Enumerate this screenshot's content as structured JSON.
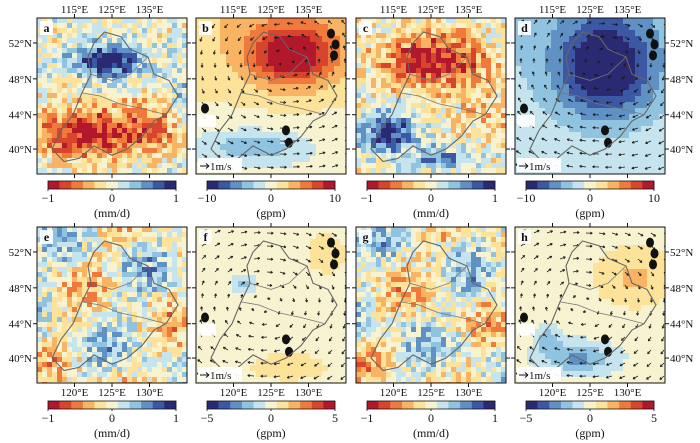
{
  "figure": {
    "panels": [
      {
        "letter": "a",
        "kind": "precip",
        "row": 0,
        "col": 0,
        "scale": "1m/s",
        "show_scale": false,
        "shading": "rain_top_dry_bottom"
      },
      {
        "letter": "b",
        "kind": "gph",
        "row": 0,
        "col": 1,
        "scale": "1m/s",
        "show_scale": true,
        "shading": "warm_high"
      },
      {
        "letter": "c",
        "kind": "precip",
        "row": 0,
        "col": 2,
        "scale": "1m/s",
        "show_scale": false,
        "shading": "dry_top_wet_sw"
      },
      {
        "letter": "d",
        "kind": "gph",
        "row": 0,
        "col": 3,
        "scale": "1m/s",
        "show_scale": true,
        "shading": "deep_low"
      },
      {
        "letter": "e",
        "kind": "precip",
        "row": 1,
        "col": 0,
        "scale": "1m/s",
        "show_scale": false,
        "shading": "noisy"
      },
      {
        "letter": "f",
        "kind": "gph",
        "row": 1,
        "col": 1,
        "scale": "1m/s",
        "show_scale": true,
        "shading": "weak"
      },
      {
        "letter": "g",
        "kind": "precip",
        "row": 1,
        "col": 2,
        "scale": "1m/s",
        "show_scale": false,
        "shading": "noisy"
      },
      {
        "letter": "h",
        "kind": "gph",
        "row": 1,
        "col": 3,
        "scale": "1m/s",
        "show_scale": true,
        "shading": "weak_low_south"
      }
    ],
    "top_lon_labels": [
      "115°E",
      "125°E",
      "135°E"
    ],
    "bottom_lon_labels": [
      "120°E",
      "125°E",
      "130°E"
    ],
    "lat_labels_top": [
      "52°N",
      "48°N",
      "44°N",
      "40°N"
    ],
    "lat_labels_bottom": [
      "52°N",
      "48°N",
      "44°N",
      "40°N"
    ],
    "colorbars": {
      "precip": {
        "ticks": [
          "−1",
          "0",
          "1"
        ],
        "unit": "(mm/d)"
      },
      "gph_top": {
        "ticks": [
          "−10",
          "0",
          "10"
        ],
        "unit": "(gpm)"
      },
      "gph_bottom": {
        "ticks": [
          "−5",
          "0",
          "5"
        ],
        "unit": "(gpm)"
      }
    },
    "palette": {
      "precip": [
        "#b2182b",
        "#d6452c",
        "#ef7a3c",
        "#f9b463",
        "#fde39a",
        "#f7f3d0",
        "#c6e4ee",
        "#8fc3df",
        "#5f91c4",
        "#3c57a3",
        "#2a2a72"
      ],
      "gph": [
        "#2a2a72",
        "#3c57a3",
        "#5f91c4",
        "#8fc3df",
        "#c6e4ee",
        "#f7f3d0",
        "#fde39a",
        "#f9b463",
        "#ef7a3c",
        "#d6452c",
        "#b2182b"
      ]
    }
  }
}
